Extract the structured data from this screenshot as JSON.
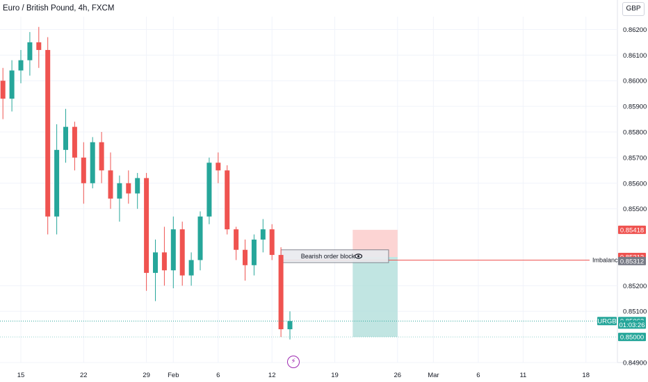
{
  "header": {
    "title": "Euro / British Pound, 4h, FXCM",
    "currency": "GBP"
  },
  "colors": {
    "up": "#26a69a",
    "down": "#ef5350",
    "zone_profit": "#b2dfdb",
    "zone_loss": "#fbc9c8",
    "imbalance_line": "#ef5350",
    "price_line": "#26a69a",
    "badge_gray": "#787b86"
  },
  "chart_data": {
    "type": "candlestick",
    "symbol": "EURGBP",
    "timeframe": "4h",
    "ylim": [
      0.849,
      0.8625
    ],
    "y_ticks": [
      "0.86200",
      "0.86100",
      "0.86000",
      "0.85900",
      "0.85800",
      "0.85700",
      "0.85600",
      "0.85500",
      "0.85200",
      "0.85100",
      "0.84900"
    ],
    "x_ticks": [
      {
        "label": "15",
        "date": "2024-01-15"
      },
      {
        "label": "22",
        "date": "2024-01-22"
      },
      {
        "label": "29",
        "date": "2024-01-29"
      },
      {
        "label": "Feb",
        "date": "2024-02-01"
      },
      {
        "label": "6",
        "date": "2024-02-06"
      },
      {
        "label": "12",
        "date": "2024-02-12"
      },
      {
        "label": "19",
        "date": "2024-02-19"
      },
      {
        "label": "26",
        "date": "2024-02-26"
      },
      {
        "label": "Mar",
        "date": "2024-03-01"
      },
      {
        "label": "6",
        "date": "2024-03-06"
      },
      {
        "label": "11",
        "date": "2024-03-11"
      },
      {
        "label": "18",
        "date": "2024-03-18"
      }
    ],
    "candles": [
      {
        "date": "2024-01-12",
        "o": 0.8611,
        "h": 0.8615,
        "l": 0.8596,
        "c": 0.86
      },
      {
        "date": "2024-01-13",
        "o": 0.86,
        "h": 0.8605,
        "l": 0.8585,
        "c": 0.8593
      },
      {
        "date": "2024-01-14",
        "o": 0.8593,
        "h": 0.8608,
        "l": 0.8588,
        "c": 0.8604
      },
      {
        "date": "2024-01-15",
        "o": 0.8604,
        "h": 0.8612,
        "l": 0.8599,
        "c": 0.8608
      },
      {
        "date": "2024-01-16",
        "o": 0.8608,
        "h": 0.8619,
        "l": 0.8602,
        "c": 0.8615
      },
      {
        "date": "2024-01-17",
        "o": 0.8615,
        "h": 0.8621,
        "l": 0.8605,
        "c": 0.8612
      },
      {
        "date": "2024-01-18",
        "o": 0.8612,
        "h": 0.8617,
        "l": 0.854,
        "c": 0.8547
      },
      {
        "date": "2024-01-19",
        "o": 0.8547,
        "h": 0.8583,
        "l": 0.854,
        "c": 0.8573
      },
      {
        "date": "2024-01-20",
        "o": 0.8573,
        "h": 0.8589,
        "l": 0.8568,
        "c": 0.8582
      },
      {
        "date": "2024-01-21",
        "o": 0.8582,
        "h": 0.8584,
        "l": 0.8565,
        "c": 0.857
      },
      {
        "date": "2024-01-22",
        "o": 0.857,
        "h": 0.8576,
        "l": 0.8552,
        "c": 0.856
      },
      {
        "date": "2024-01-23",
        "o": 0.856,
        "h": 0.8578,
        "l": 0.8558,
        "c": 0.8576
      },
      {
        "date": "2024-01-24",
        "o": 0.8576,
        "h": 0.858,
        "l": 0.856,
        "c": 0.8565
      },
      {
        "date": "2024-01-25",
        "o": 0.8565,
        "h": 0.8572,
        "l": 0.855,
        "c": 0.8554
      },
      {
        "date": "2024-01-26",
        "o": 0.8554,
        "h": 0.8563,
        "l": 0.8545,
        "c": 0.856
      },
      {
        "date": "2024-01-27",
        "o": 0.856,
        "h": 0.8565,
        "l": 0.8552,
        "c": 0.8556
      },
      {
        "date": "2024-01-28",
        "o": 0.8556,
        "h": 0.8564,
        "l": 0.855,
        "c": 0.8562
      },
      {
        "date": "2024-01-29",
        "o": 0.8562,
        "h": 0.8564,
        "l": 0.8518,
        "c": 0.8525
      },
      {
        "date": "2024-01-30",
        "o": 0.8525,
        "h": 0.8538,
        "l": 0.8514,
        "c": 0.8533
      },
      {
        "date": "2024-01-31",
        "o": 0.8533,
        "h": 0.8543,
        "l": 0.852,
        "c": 0.8526
      },
      {
        "date": "2024-02-01",
        "o": 0.8526,
        "h": 0.8547,
        "l": 0.8519,
        "c": 0.8542
      },
      {
        "date": "2024-02-02",
        "o": 0.8542,
        "h": 0.8545,
        "l": 0.852,
        "c": 0.8524
      },
      {
        "date": "2024-02-03",
        "o": 0.8524,
        "h": 0.8533,
        "l": 0.852,
        "c": 0.853
      },
      {
        "date": "2024-02-04",
        "o": 0.853,
        "h": 0.8549,
        "l": 0.8526,
        "c": 0.8547
      },
      {
        "date": "2024-02-05",
        "o": 0.8547,
        "h": 0.857,
        "l": 0.8544,
        "c": 0.8568
      },
      {
        "date": "2024-02-06",
        "o": 0.8568,
        "h": 0.8572,
        "l": 0.856,
        "c": 0.8565
      },
      {
        "date": "2024-02-07",
        "o": 0.8565,
        "h": 0.8567,
        "l": 0.854,
        "c": 0.8542
      },
      {
        "date": "2024-02-08",
        "o": 0.8542,
        "h": 0.8543,
        "l": 0.853,
        "c": 0.8534
      },
      {
        "date": "2024-02-09",
        "o": 0.8534,
        "h": 0.8538,
        "l": 0.8522,
        "c": 0.8528
      },
      {
        "date": "2024-02-10",
        "o": 0.8528,
        "h": 0.854,
        "l": 0.8524,
        "c": 0.8538
      },
      {
        "date": "2024-02-11",
        "o": 0.8538,
        "h": 0.8546,
        "l": 0.8533,
        "c": 0.8542
      },
      {
        "date": "2024-02-12",
        "o": 0.8542,
        "h": 0.8544,
        "l": 0.853,
        "c": 0.8532
      },
      {
        "date": "2024-02-13",
        "o": 0.8532,
        "h": 0.8535,
        "l": 0.85,
        "c": 0.8503
      },
      {
        "date": "2024-02-14",
        "o": 0.8503,
        "h": 0.851,
        "l": 0.8499,
        "c": 0.85062
      }
    ],
    "annotations": {
      "order_block": {
        "label": "Bearish order block",
        "y_top": 0.8534,
        "y_bottom": 0.8529,
        "date_start": "2024-02-13",
        "date_end": "2024-02-25"
      },
      "imbalance": {
        "label": "Imbalance",
        "y": 0.853,
        "date_start": "2024-02-13"
      },
      "stop_zone": {
        "y_top": 0.85418,
        "y_bottom": 0.85312,
        "date_start": "2024-02-21",
        "date_end": "2024-02-26"
      },
      "target_zone": {
        "y_top": 0.85312,
        "y_bottom": 0.85,
        "date_start": "2024-02-21",
        "date_end": "2024-02-26"
      }
    },
    "price_badges": [
      {
        "value": "0.85418",
        "y": 0.85418,
        "color": "#ef5350"
      },
      {
        "value": "0.85312",
        "y": 0.85312,
        "color": "#ef5350"
      },
      {
        "value": "0.85312",
        "y": 0.85296,
        "color": "#787b86"
      },
      {
        "value": "0.85062",
        "y": 0.85062,
        "color": "#26a69a"
      },
      {
        "value": "01:03:26",
        "y": 0.85048,
        "color": "#26a69a"
      },
      {
        "value": "0.85000",
        "y": 0.85,
        "color": "#26a69a"
      }
    ],
    "last_price": {
      "symbol": "EURGBP",
      "value": 0.85062,
      "countdown": "01:03:26"
    }
  }
}
